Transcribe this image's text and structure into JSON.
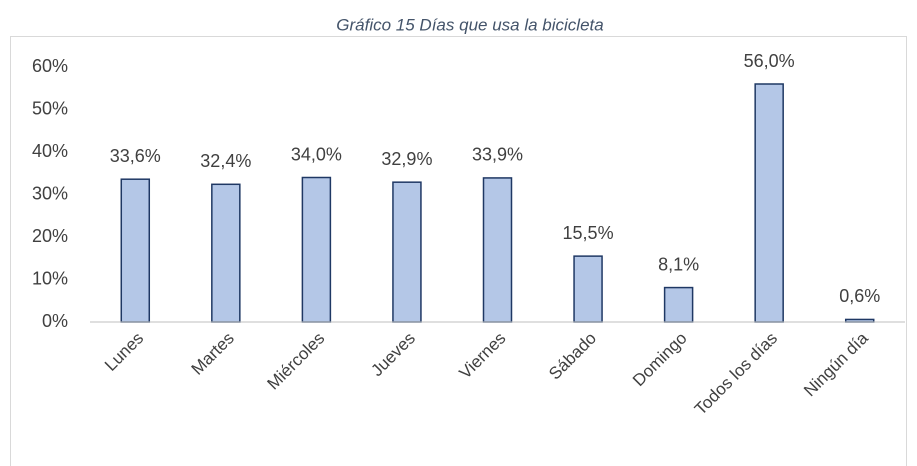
{
  "chart_data": {
    "type": "bar",
    "title": "Gráfico 15 Días que usa la bicicleta",
    "categories": [
      "Lunes",
      "Martes",
      "Miércoles",
      "Jueves",
      "Viernes",
      "Sábado",
      "Domingo",
      "Todos los días",
      "Ningún día"
    ],
    "values": [
      33.6,
      32.4,
      34.0,
      32.9,
      33.9,
      15.5,
      8.1,
      56.0,
      0.6
    ],
    "value_labels": [
      "33,6%",
      "32,4%",
      "34,0%",
      "32,9%",
      "33,9%",
      "15,5%",
      "8,1%",
      "56,0%",
      "0,6%"
    ],
    "color": "#b4c7e7",
    "edge_color": "#1f3864",
    "ylim": [
      0,
      60
    ],
    "yticks": [
      {
        "value": 0,
        "label": "0%"
      },
      {
        "value": 10,
        "label": "10%"
      },
      {
        "value": 20,
        "label": "20%"
      },
      {
        "value": 30,
        "label": "30%"
      },
      {
        "value": 40,
        "label": "40%"
      },
      {
        "value": 50,
        "label": "50%"
      },
      {
        "value": 60,
        "label": "60%"
      }
    ],
    "grid": false
  }
}
